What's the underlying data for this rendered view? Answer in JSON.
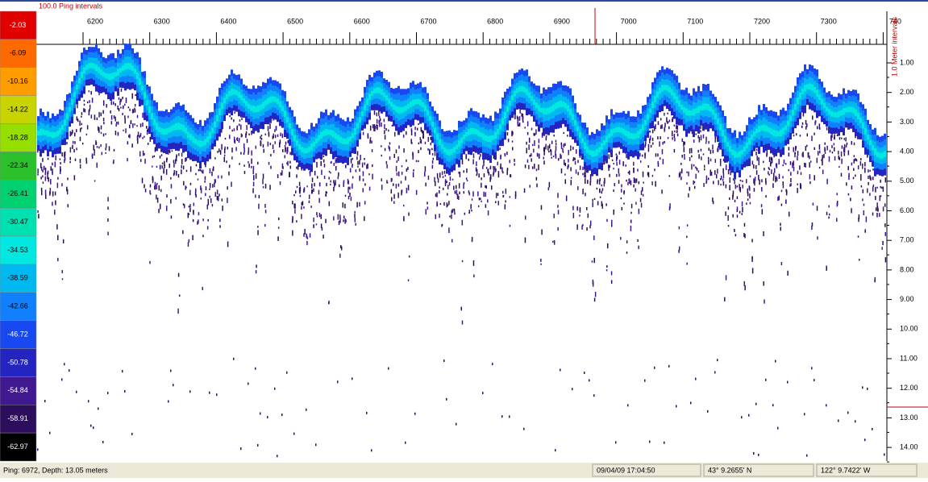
{
  "scale": {
    "items": [
      {
        "label": "-2.03",
        "color": "#e00000"
      },
      {
        "label": "-6.09",
        "color": "#ff6a00"
      },
      {
        "label": "-10.16",
        "color": "#ff9c00"
      },
      {
        "label": "-14.22",
        "color": "#c8d400"
      },
      {
        "label": "-18.28",
        "color": "#96de00"
      },
      {
        "label": "-22.34",
        "color": "#2cc02c"
      },
      {
        "label": "-26.41",
        "color": "#00d070"
      },
      {
        "label": "-30.47",
        "color": "#00e0b0"
      },
      {
        "label": "-34.53",
        "color": "#00e8e0"
      },
      {
        "label": "-38.59",
        "color": "#00b8f0"
      },
      {
        "label": "-42.66",
        "color": "#1080ff"
      },
      {
        "label": "-46.72",
        "color": "#1848f0"
      },
      {
        "label": "-50.78",
        "color": "#2424c0"
      },
      {
        "label": "-54.84",
        "color": "#401890"
      },
      {
        "label": "-58.91",
        "color": "#2c0e5c"
      },
      {
        "label": "-62.97",
        "color": "#000000"
      }
    ]
  },
  "ruler": {
    "title": "100.0 Ping intervals",
    "labels": [
      "6200",
      "6300",
      "6400",
      "6500",
      "6600",
      "6700",
      "6800",
      "6900",
      "7000",
      "7100",
      "7200",
      "7300",
      "740"
    ]
  },
  "depth_axis": {
    "title": "1.0 Meter intervals",
    "labels": [
      "1.00",
      "2.00",
      "3.00",
      "4.00",
      "5.00",
      "6.00",
      "7.00",
      "8.00",
      "9.00",
      "10.00",
      "11.00",
      "12.00",
      "13.00",
      "14.00"
    ]
  },
  "status": {
    "cursor": "Ping: 6972, Depth: 13.05 meters",
    "time": "09/04/09 17:04:50",
    "lat": "43° 9.2655' N",
    "lon": "122° 9.7422' W"
  }
}
